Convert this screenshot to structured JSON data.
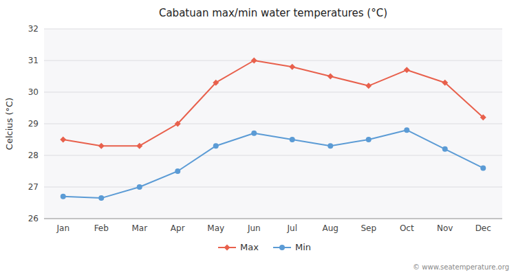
{
  "chart_data": {
    "type": "line",
    "title": "Cabatuan max/min water temperatures (°C)",
    "y_label": "Celcius (°C)",
    "categories": [
      "Jan",
      "Feb",
      "Mar",
      "Apr",
      "May",
      "Jun",
      "Jul",
      "Aug",
      "Sep",
      "Oct",
      "Nov",
      "Dec"
    ],
    "series": [
      {
        "name": "Max",
        "color": "#e8604c",
        "marker": "diamond",
        "values": [
          28.5,
          28.3,
          28.3,
          29.0,
          30.3,
          31.0,
          30.8,
          30.5,
          30.2,
          30.7,
          30.3,
          29.2
        ]
      },
      {
        "name": "Min",
        "color": "#5b9bd5",
        "marker": "circle",
        "values": [
          26.7,
          26.65,
          27.0,
          27.5,
          28.3,
          28.7,
          28.5,
          28.3,
          28.5,
          28.8,
          28.2,
          27.6
        ]
      }
    ],
    "ylim": [
      26.0,
      32.0
    ],
    "yticks": [
      26,
      27,
      28,
      29,
      30,
      31,
      32
    ],
    "grid": true,
    "legend": "bottom",
    "annotations": [
      "© www.seatemperature.org"
    ]
  }
}
